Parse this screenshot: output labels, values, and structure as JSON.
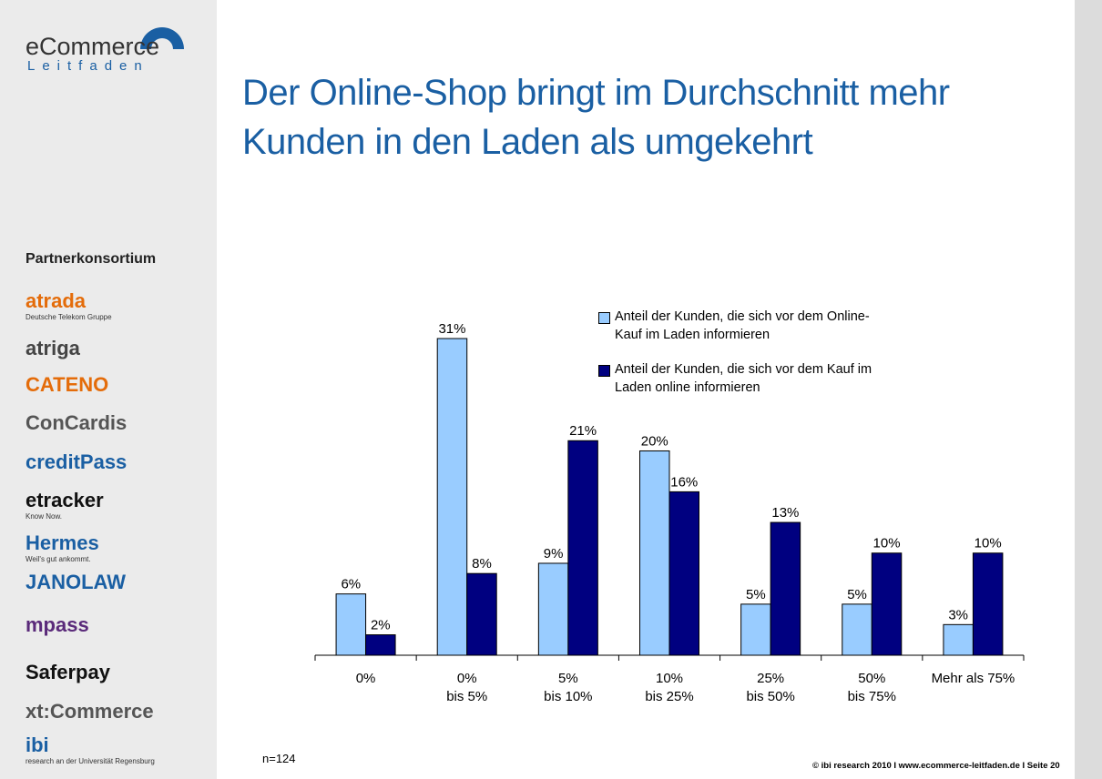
{
  "sidebar": {
    "logo": {
      "name": "eCommerce",
      "sub": "Leitfaden"
    },
    "heading": "Partnerkonsortium",
    "partners": [
      {
        "name": "atrada",
        "tagline": "Deutsche Telekom Gruppe"
      },
      {
        "name": "atriga"
      },
      {
        "name": "CATENO"
      },
      {
        "name": "ConCardis"
      },
      {
        "name": "creditPass"
      },
      {
        "name": "etracker",
        "tagline": "Know Now."
      },
      {
        "name": "Hermes",
        "tagline": "Weil's gut ankommt."
      },
      {
        "name": "JANOLAW"
      },
      {
        "name": "mpass"
      },
      {
        "name": "Saferpay"
      },
      {
        "name": "xt:Commerce"
      },
      {
        "name": "ibi",
        "tagline": "research an der Universität Regensburg"
      }
    ]
  },
  "chart_data": {
    "type": "bar",
    "title": [
      "Der Online-Shop bringt im Durchschnitt mehr",
      "Kunden in den Laden als umgekehrt"
    ],
    "categories": [
      [
        "0%"
      ],
      [
        "0%",
        "bis 5%"
      ],
      [
        "5%",
        "bis 10%"
      ],
      [
        "10%",
        "bis 25%"
      ],
      [
        "25%",
        "bis 50%"
      ],
      [
        "50%",
        "bis 75%"
      ],
      [
        "Mehr als 75%"
      ]
    ],
    "series": [
      {
        "name": "Anteil der Kunden, die sich vor dem Online-Kauf im Laden informieren",
        "color": "#99ccff",
        "values": [
          6,
          31,
          9,
          20,
          5,
          5,
          3
        ],
        "value_labels": [
          "6%",
          "31%",
          "9%",
          "20%",
          "5%",
          "5%",
          "3%"
        ]
      },
      {
        "name": "Anteil der Kunden, die sich vor dem Kauf im Laden online informieren",
        "color": "#000080",
        "values": [
          2,
          8,
          21,
          16,
          13,
          10,
          10
        ],
        "value_labels": [
          "2%",
          "8%",
          "21%",
          "16%",
          "13%",
          "10%",
          "10%"
        ]
      }
    ],
    "note": "n=124"
  },
  "footer": "© ibi research 2010 I www.ecommerce-leitfaden.de I Seite 20"
}
